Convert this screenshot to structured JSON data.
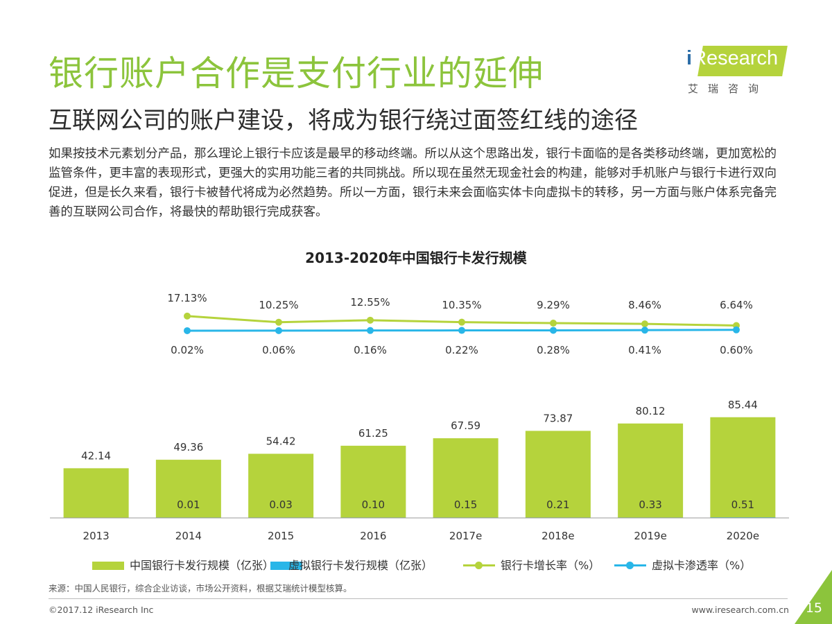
{
  "header": {
    "title": "银行账户合作是支付行业的延伸",
    "subtitle": "互联网公司的账户建设，将成为银行绕过面签红线的途径",
    "body": "如果按技术元素划分产品，那么理论上银行卡应该是最早的移动终端。所以从这个思路出发，银行卡面临的是各类移动终端，更加宽松的监管条件，更丰富的表现形式，更强大的实用功能三者的共同挑战。所以现在虽然无现金社会的构建，能够对手机账户与银行卡进行双向促进，但是长久来看，银行卡被替代将成为必然趋势。所以一方面，银行未来会面临实体卡向虚拟卡的转移，另一方面与账户体系完备完善的互联网公司合作，将最快的帮助银行完成获客。"
  },
  "logo": {
    "i_letter": "i",
    "text": "Research",
    "cn": "艾瑞咨询"
  },
  "chart_data": {
    "type": "bar",
    "title": "2013-2020年中国银行卡发行规模",
    "categories": [
      "2013",
      "2014",
      "2015",
      "2016",
      "2017e",
      "2018e",
      "2019e",
      "2020e"
    ],
    "series": [
      {
        "name": "中国银行卡发行规模（亿张）",
        "type": "bar",
        "color": "#b5d33c",
        "values": [
          42.14,
          49.36,
          54.42,
          61.25,
          67.59,
          73.87,
          80.12,
          85.44
        ],
        "labels": [
          "42.14",
          "49.36",
          "54.42",
          "61.25",
          "67.59",
          "73.87",
          "80.12",
          "85.44"
        ]
      },
      {
        "name": "虚拟银行卡发行规模（亿张）",
        "type": "bar",
        "color": "#29b6e8",
        "values": [
          null,
          0.01,
          0.03,
          0.1,
          0.15,
          0.21,
          0.33,
          0.51
        ],
        "labels": [
          "",
          "0.01",
          "0.03",
          "0.10",
          "0.15",
          "0.21",
          "0.33",
          "0.51"
        ]
      },
      {
        "name": "银行卡增长率（%）",
        "type": "line",
        "color": "#b5d33c",
        "values": [
          17.13,
          10.25,
          12.55,
          10.35,
          9.29,
          8.46,
          6.64,
          null
        ],
        "labels": [
          "17.13%",
          "10.25%",
          "12.55%",
          "10.35%",
          "9.29%",
          "8.46%",
          "6.64%",
          ""
        ]
      },
      {
        "name": "虚拟卡渗透率（%）",
        "type": "line",
        "color": "#29b6e8",
        "values": [
          0.02,
          0.06,
          0.16,
          0.22,
          0.28,
          0.41,
          0.6,
          null
        ],
        "labels": [
          "0.02%",
          "0.06%",
          "0.16%",
          "0.22%",
          "0.28%",
          "0.41%",
          "0.60%",
          ""
        ]
      }
    ],
    "legend_position": "bottom",
    "grid": false
  },
  "footer": {
    "source": "来源：中国人民银行，综合企业访谈，市场公开资料，根据艾瑞统计模型核算。",
    "copyright": "©2017.12 iResearch Inc",
    "website": "www.iresearch.com.cn",
    "page_number": "15"
  }
}
